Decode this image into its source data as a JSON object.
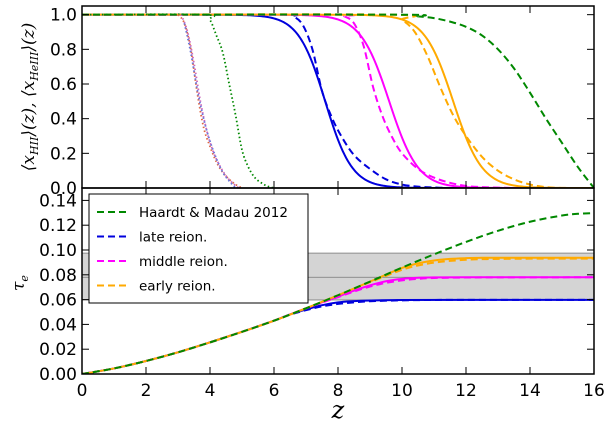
{
  "chart_data": [
    {
      "type": "line",
      "panel": "top",
      "ylabel": "⟨x_HII⟩(z), ⟨x_HeIII⟩(z)",
      "ylabel_parts": [
        "⟨x",
        "HII",
        "⟩(",
        "z",
        "), ⟨x",
        "HeIII",
        "⟩(",
        "z",
        ")"
      ],
      "xlim": [
        0,
        16
      ],
      "ylim": [
        0,
        1.05
      ],
      "yticks": [
        "0.0",
        "0.2",
        "0.4",
        "0.6",
        "0.8",
        "1.0"
      ],
      "series": [
        {
          "color": "#0000dd",
          "style": "solid",
          "kind": "logistic",
          "z_mid": 7.6,
          "width": 0.42
        },
        {
          "color": "#0000dd",
          "style": "dashed",
          "kind": "points",
          "x": [
            0,
            6.3,
            6.6,
            6.9,
            7.2,
            7.5,
            7.8,
            8.1,
            8.5,
            9.0,
            9.5,
            10.0,
            10.5,
            11.0,
            11.5
          ],
          "y": [
            1.0,
            1.0,
            0.99,
            0.94,
            0.8,
            0.56,
            0.41,
            0.3,
            0.19,
            0.11,
            0.05,
            0.02,
            0.008,
            0.003,
            0.0
          ]
        },
        {
          "color": "#ff00ff",
          "style": "solid",
          "kind": "logistic",
          "z_mid": 9.6,
          "width": 0.45
        },
        {
          "color": "#ff00ff",
          "style": "dashed",
          "kind": "points",
          "x": [
            0,
            7.9,
            8.2,
            8.5,
            8.8,
            9.1,
            9.4,
            9.7,
            10.0,
            10.5,
            11.0,
            11.5,
            12.0,
            12.5,
            13.0,
            13.5
          ],
          "y": [
            1.0,
            1.0,
            0.99,
            0.95,
            0.82,
            0.58,
            0.41,
            0.29,
            0.2,
            0.11,
            0.06,
            0.03,
            0.012,
            0.005,
            0.002,
            0.0
          ]
        },
        {
          "color": "#ffaa00",
          "style": "solid",
          "kind": "logistic",
          "z_mid": 11.6,
          "width": 0.45
        },
        {
          "color": "#ffaa00",
          "style": "dashed",
          "kind": "points",
          "x": [
            0,
            9.6,
            10.0,
            10.4,
            10.8,
            11.2,
            11.6,
            12.0,
            12.5,
            13.0,
            13.5,
            14.0,
            14.5,
            15.0
          ],
          "y": [
            1.0,
            1.0,
            0.97,
            0.9,
            0.76,
            0.58,
            0.42,
            0.3,
            0.18,
            0.1,
            0.05,
            0.02,
            0.005,
            0.0
          ]
        },
        {
          "color": "#008800",
          "style": "dashed",
          "kind": "points",
          "x": [
            0,
            9.8,
            10.5,
            11.0,
            11.5,
            12.0,
            12.5,
            13.0,
            13.5,
            14.0,
            14.5,
            15.0,
            15.5,
            16.0
          ],
          "y": [
            1.0,
            1.0,
            0.99,
            0.98,
            0.96,
            0.93,
            0.88,
            0.8,
            0.69,
            0.55,
            0.4,
            0.26,
            0.12,
            0.0
          ]
        },
        {
          "color": "#008800",
          "style": "dotted",
          "kind": "points",
          "x": [
            0,
            3.8,
            4.0,
            4.2,
            4.4,
            4.6,
            4.8,
            5.0,
            5.2,
            5.4,
            5.6,
            5.8,
            6.0
          ],
          "y": [
            1.0,
            1.0,
            0.97,
            0.88,
            0.78,
            0.6,
            0.42,
            0.22,
            0.12,
            0.06,
            0.03,
            0.01,
            0.0
          ]
        },
        {
          "color": "#dd6644",
          "style": "dotted",
          "kind": "points",
          "x": [
            3.0,
            3.2,
            3.4,
            3.6,
            3.8,
            4.0,
            4.2,
            4.4,
            4.6,
            4.8,
            5.0
          ],
          "y": [
            1.0,
            0.95,
            0.8,
            0.55,
            0.35,
            0.24,
            0.15,
            0.09,
            0.05,
            0.02,
            0.0
          ]
        },
        {
          "color": "#cc66bb",
          "style": "dotted",
          "kind": "points",
          "x": [
            3.1,
            3.3,
            3.5,
            3.7,
            3.9,
            4.1,
            4.3,
            4.5,
            4.7,
            4.9
          ],
          "y": [
            1.0,
            0.9,
            0.72,
            0.5,
            0.33,
            0.21,
            0.13,
            0.07,
            0.03,
            0.0
          ]
        },
        {
          "color": "#6677dd",
          "style": "dotted",
          "kind": "points",
          "x": [
            3.2,
            3.4,
            3.6,
            3.8,
            4.0,
            4.2,
            4.4,
            4.6,
            4.8
          ],
          "y": [
            0.95,
            0.78,
            0.57,
            0.4,
            0.27,
            0.17,
            0.09,
            0.04,
            0.0
          ]
        }
      ]
    },
    {
      "type": "line",
      "panel": "bottom",
      "ylabel": "τ_e",
      "ylabel_parts": [
        "τ",
        "e"
      ],
      "xlabel": "z",
      "xlim": [
        0,
        16
      ],
      "ylim": [
        0,
        0.15
      ],
      "xticks": [
        "0",
        "2",
        "4",
        "6",
        "8",
        "10",
        "12",
        "14",
        "16"
      ],
      "yticks": [
        "0.00",
        "0.02",
        "0.04",
        "0.06",
        "0.08",
        "0.10",
        "0.12",
        "0.14"
      ],
      "band": {
        "y0": 0.0597,
        "y1": 0.0975,
        "mid": 0.078,
        "color": "#d4d4d4"
      },
      "legend": {
        "placement": "upper-left",
        "entries": [
          {
            "label": "Haardt & Madau 2012",
            "color": "#008800"
          },
          {
            "label": "late reion.",
            "color": "#0000dd"
          },
          {
            "label": "middle reion.",
            "color": "#ff00ff"
          },
          {
            "label": "early reion.",
            "color": "#ffaa00"
          }
        ]
      },
      "series": [
        {
          "color": "#0000dd",
          "style": "solid",
          "x": [
            0,
            1,
            2,
            3,
            4,
            5,
            6,
            6.5,
            7,
            7.5,
            8,
            8.5,
            9,
            10,
            12,
            16
          ],
          "y": [
            0.0,
            0.0045,
            0.0105,
            0.0175,
            0.0255,
            0.034,
            0.043,
            0.048,
            0.052,
            0.0555,
            0.0578,
            0.0588,
            0.0593,
            0.0597,
            0.0598,
            0.0598
          ]
        },
        {
          "color": "#0000dd",
          "style": "dashed",
          "x": [
            0,
            1,
            2,
            3,
            4,
            5,
            6,
            6.5,
            7,
            7.5,
            8,
            8.5,
            9,
            10,
            11,
            12,
            16
          ],
          "y": [
            0.0,
            0.0045,
            0.0105,
            0.0175,
            0.0255,
            0.034,
            0.043,
            0.0478,
            0.0515,
            0.0545,
            0.0565,
            0.0578,
            0.0587,
            0.0594,
            0.0597,
            0.0598,
            0.0598
          ]
        },
        {
          "color": "#ff00ff",
          "style": "solid",
          "x": [
            0,
            1,
            2,
            3,
            4,
            5,
            6,
            7,
            8,
            8.5,
            9,
            9.5,
            10,
            10.5,
            11,
            12,
            16
          ],
          "y": [
            0.0,
            0.0045,
            0.0105,
            0.0175,
            0.0255,
            0.034,
            0.043,
            0.053,
            0.0625,
            0.0672,
            0.0715,
            0.0748,
            0.0767,
            0.0776,
            0.0779,
            0.078,
            0.078
          ]
        },
        {
          "color": "#ff00ff",
          "style": "dashed",
          "x": [
            0,
            1,
            2,
            3,
            4,
            5,
            6,
            7,
            8,
            8.5,
            9,
            9.5,
            10,
            10.5,
            11,
            12,
            13,
            16
          ],
          "y": [
            0.0,
            0.0045,
            0.0105,
            0.0175,
            0.0255,
            0.034,
            0.043,
            0.053,
            0.062,
            0.0665,
            0.0705,
            0.0735,
            0.0755,
            0.0767,
            0.0774,
            0.0778,
            0.0779,
            0.078
          ]
        },
        {
          "color": "#ffaa00",
          "style": "solid",
          "x": [
            0,
            1,
            2,
            3,
            4,
            5,
            6,
            7,
            8,
            9,
            10,
            10.5,
            11,
            11.5,
            12,
            12.5,
            13,
            14,
            16
          ],
          "y": [
            0.0,
            0.0045,
            0.0105,
            0.0175,
            0.0255,
            0.034,
            0.043,
            0.053,
            0.0635,
            0.0745,
            0.0855,
            0.0892,
            0.0915,
            0.0928,
            0.0934,
            0.0937,
            0.0938,
            0.0938,
            0.0938
          ]
        },
        {
          "color": "#ffaa00",
          "style": "dashed",
          "x": [
            0,
            1,
            2,
            3,
            4,
            5,
            6,
            7,
            8,
            9,
            10,
            10.5,
            11,
            11.5,
            12,
            12.5,
            13,
            14,
            16
          ],
          "y": [
            0.0,
            0.0045,
            0.0105,
            0.0175,
            0.0255,
            0.034,
            0.043,
            0.053,
            0.0635,
            0.074,
            0.084,
            0.0875,
            0.0898,
            0.0912,
            0.0921,
            0.0926,
            0.0928,
            0.093,
            0.093
          ]
        },
        {
          "color": "#008800",
          "style": "dashed",
          "x": [
            0,
            1,
            2,
            3,
            4,
            5,
            6,
            7,
            8,
            9,
            10,
            11,
            12,
            13,
            14,
            15,
            15.5,
            16
          ],
          "y": [
            0.0,
            0.0045,
            0.0105,
            0.0175,
            0.0255,
            0.034,
            0.043,
            0.053,
            0.0635,
            0.0745,
            0.0858,
            0.0965,
            0.1065,
            0.1155,
            0.1228,
            0.1278,
            0.1292,
            0.1298
          ]
        }
      ]
    }
  ]
}
